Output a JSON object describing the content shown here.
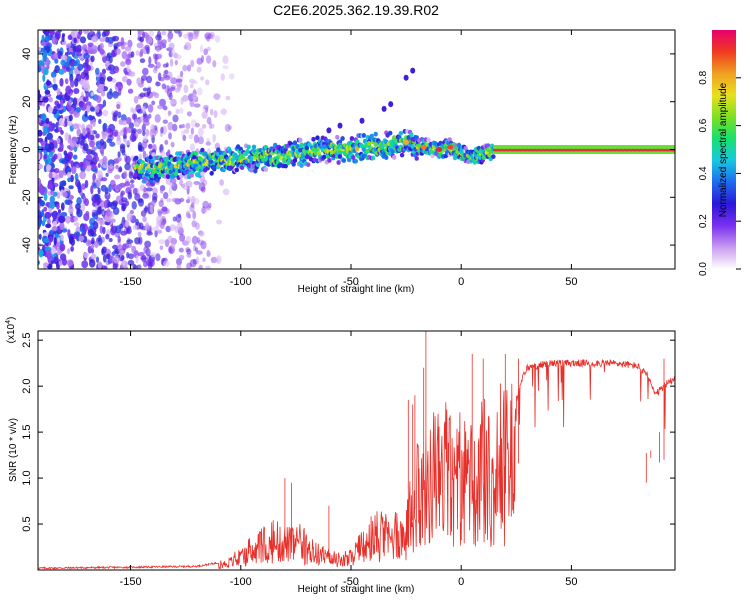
{
  "title": "C2E6.2025.362.19.39.R02",
  "colors": {
    "frame": "#000000",
    "snr_line": "#e8302a",
    "background": "#ffffff"
  },
  "chart_data": [
    {
      "type": "heatmap",
      "name": "spectrogram",
      "xlabel": "Height of straight line (km)",
      "ylabel": "Frequency (Hz)",
      "xlim": [
        -192,
        97
      ],
      "ylim": [
        -50,
        50
      ],
      "x_ticks": [
        -150,
        -100,
        -50,
        0,
        50
      ],
      "x_tick_labels": [
        "-150",
        "-100",
        "-50",
        "0",
        "50"
      ],
      "y_ticks": [
        -40,
        -20,
        0,
        20,
        40
      ],
      "y_tick_labels": [
        "-40",
        "-20",
        "0",
        "20",
        "40"
      ],
      "ridge": {
        "description": "frequency of the main signal ridge vs height",
        "x": [
          -145,
          -130,
          -115,
          -100,
          -85,
          -70,
          -60,
          -50,
          -40,
          -30,
          -25,
          -20,
          -15,
          -10,
          -5,
          0,
          5,
          10,
          15,
          30,
          50,
          70,
          97
        ],
        "y": [
          -8,
          -7,
          -5,
          -4,
          -3,
          -1,
          0,
          0,
          1,
          2,
          3,
          1,
          1,
          0,
          1,
          -2,
          -3,
          -2,
          0,
          0,
          0,
          0,
          0
        ]
      },
      "colorbar": {
        "label": "Normalized spectral amplitude",
        "range": [
          0,
          1
        ],
        "ticks": [
          0.0,
          0.2,
          0.4,
          0.6,
          0.8
        ],
        "tick_labels": [
          "0.0",
          "0.2",
          "0.4",
          "0.6",
          "0.8"
        ],
        "stops": [
          "#ffffff",
          "#c89bf0",
          "#7a2ff0",
          "#2b18d8",
          "#1e6cf0",
          "#17c8e0",
          "#17e070",
          "#7ee020",
          "#e8e020",
          "#f0a020",
          "#f03a20",
          "#e8006e"
        ]
      }
    },
    {
      "type": "line",
      "name": "snr",
      "xlabel": "Height of straight line (km)",
      "ylabel": "SNR (10 * v/v)",
      "y_multiplier": "(x10",
      "y_multiplier_exp": "4",
      "y_multiplier_close": ")",
      "xlim": [
        -192,
        97
      ],
      "ylim": [
        0,
        2.6
      ],
      "x_ticks": [
        -150,
        -100,
        -50,
        0,
        50
      ],
      "x_tick_labels": [
        "-150",
        "-100",
        "-50",
        "0",
        "50"
      ],
      "y_ticks": [
        0.5,
        1.0,
        1.5,
        2.0,
        2.5
      ],
      "y_tick_labels": [
        "0.5",
        "1.0",
        "1.5",
        "2.0",
        "2.5"
      ],
      "envelope": {
        "description": "approximate SNR level (x1e4) vs height; fine noise added when drawn",
        "x": [
          -192,
          -150,
          -120,
          -110,
          -100,
          -95,
          -85,
          -80,
          -75,
          -70,
          -65,
          -60,
          -55,
          -50,
          -45,
          -40,
          -35,
          -30,
          -25,
          -22,
          -20,
          -18,
          -16,
          -15,
          -12,
          -10,
          -8,
          -5,
          0,
          5,
          10,
          15,
          20,
          25,
          28,
          30,
          40,
          50,
          60,
          70,
          80,
          85,
          88,
          92,
          97
        ],
        "y": [
          0.02,
          0.03,
          0.04,
          0.08,
          0.2,
          0.3,
          0.45,
          0.5,
          0.45,
          0.35,
          0.3,
          0.2,
          0.15,
          0.2,
          0.35,
          0.5,
          0.55,
          0.6,
          0.65,
          0.9,
          1.3,
          1.4,
          1.5,
          1.6,
          1.55,
          1.6,
          1.55,
          1.55,
          1.4,
          1.45,
          1.5,
          1.6,
          1.7,
          1.85,
          2.1,
          2.2,
          2.25,
          2.25,
          2.25,
          2.25,
          2.22,
          2.1,
          1.9,
          2.0,
          2.1
        ]
      },
      "spikes": {
        "x": [
          -80,
          -77,
          -60,
          -16,
          -17,
          -21,
          -24,
          -22,
          5,
          10,
          20,
          26,
          84,
          86,
          90,
          92
        ],
        "y": [
          1.0,
          0.95,
          0.7,
          2.6,
          2.2,
          1.9,
          1.85,
          1.8,
          2.35,
          2.3,
          2.35,
          2.3,
          0.95,
          1.3,
          1.5,
          2.3
        ]
      }
    }
  ]
}
